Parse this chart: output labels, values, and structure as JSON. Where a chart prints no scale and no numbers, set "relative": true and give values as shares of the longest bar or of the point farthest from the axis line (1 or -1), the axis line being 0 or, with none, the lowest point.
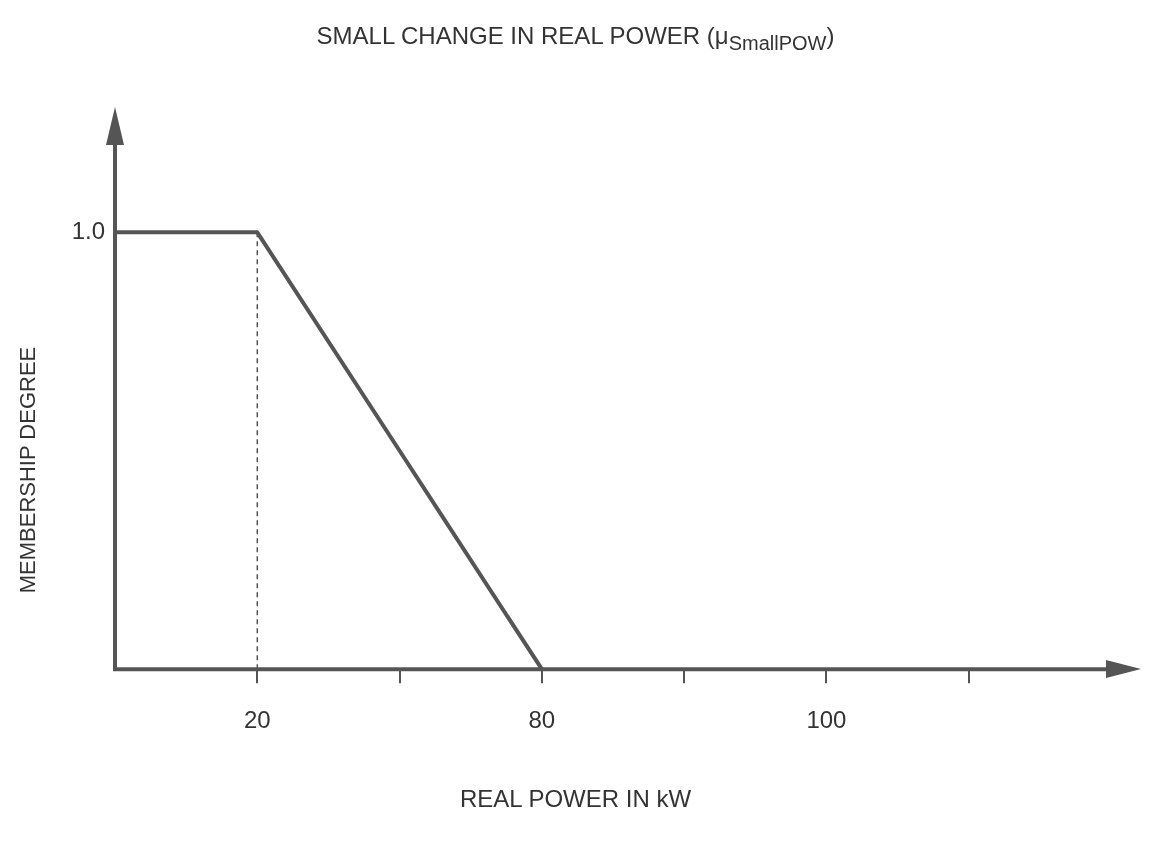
{
  "chart_data": {
    "type": "line",
    "title": "SMALL CHANGE IN REAL POWER (μ$_{SmallPOW}$)",
    "xlabel": "REAL POWER IN kW",
    "ylabel": "MEMBERSHIP DEGREE",
    "categories": [
      null,
      "20",
      null,
      "80",
      null,
      "100",
      null,
      null
    ],
    "series": [
      {
        "color": "#555555",
        "values": [
          1,
          1,
          0.5,
          0,
          null,
          null,
          null,
          null
        ]
      }
    ],
    "relative": true,
    "annotations": [
      "1.0"
    ],
    "marker": "none",
    "line_style": "solid",
    "ref_lines": [
      {
        "axis": "x",
        "value": "20",
        "line_style": "dashed",
        "color": "#555555"
      }
    ]
  }
}
